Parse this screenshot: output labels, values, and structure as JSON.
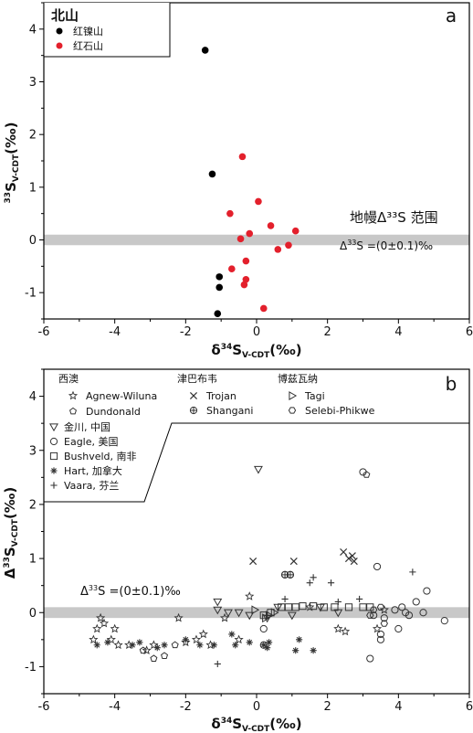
{
  "chart_data": [
    {
      "panel_label": "a",
      "type": "scatter",
      "xlim": [
        -6,
        6
      ],
      "ylim": [
        -1.5,
        4.5
      ],
      "x_ticks": [
        "-6",
        "-4",
        "-2",
        "0",
        "2",
        "4",
        "6"
      ],
      "y_ticks": [
        "-1",
        "0",
        "1",
        "2",
        "3",
        "4"
      ],
      "xlabel": {
        "main": "δ",
        "sup": "34",
        "mid": "S",
        "sub": "V-CDT",
        "unit": "(‰)"
      },
      "ylabel": {
        "sup": "33",
        "mid": "S",
        "sub": "V-CDT",
        "unit": "(‰)"
      },
      "legend": {
        "title": "北山",
        "location": "top-left"
      },
      "band": {
        "y": [
          -0.1,
          0.1
        ],
        "color": "#c8c8c8"
      },
      "band_label": "地幔Δ³³S 范围",
      "band_eq": {
        "pre": "Δ",
        "sup": "33",
        "post": "S =(0±0.1)‰"
      },
      "series": [
        {
          "name": "红镍山",
          "color": "#000000",
          "marker": "circle",
          "points": [
            [
              -1.45,
              3.6
            ],
            [
              -1.25,
              1.25
            ],
            [
              -1.05,
              -0.7
            ],
            [
              -1.05,
              -0.9
            ],
            [
              -1.1,
              -1.4
            ]
          ]
        },
        {
          "name": "红石山",
          "color": "#e3202c",
          "marker": "circle",
          "points": [
            [
              -0.4,
              1.58
            ],
            [
              0.05,
              0.73
            ],
            [
              -0.75,
              0.5
            ],
            [
              0.4,
              0.27
            ],
            [
              -0.2,
              0.12
            ],
            [
              -0.45,
              0.02
            ],
            [
              1.1,
              0.17
            ],
            [
              0.9,
              -0.1
            ],
            [
              0.6,
              -0.18
            ],
            [
              -0.3,
              -0.4
            ],
            [
              -0.7,
              -0.55
            ],
            [
              -0.3,
              -0.75
            ],
            [
              -0.35,
              -0.85
            ],
            [
              0.2,
              -1.3
            ]
          ]
        }
      ]
    },
    {
      "panel_label": "b",
      "type": "scatter",
      "xlim": [
        -6,
        6
      ],
      "ylim": [
        -1.5,
        4.5
      ],
      "x_ticks": [
        "-6",
        "-4",
        "-2",
        "0",
        "2",
        "4",
        "6"
      ],
      "y_ticks": [
        "-1",
        "0",
        "1",
        "2",
        "3",
        "4"
      ],
      "xlabel": {
        "main": "δ",
        "sup": "34",
        "mid": "S",
        "sub": "V-CDT",
        "unit": "(‰)"
      },
      "ylabel": {
        "main": "Δ",
        "sup": "33",
        "mid": "S",
        "sub": "V-CDT",
        "unit": "(‰)"
      },
      "band": {
        "y": [
          -0.1,
          0.1
        ],
        "color": "#c8c8c8"
      },
      "band_eq": {
        "pre": "Δ",
        "sup": "33",
        "post": "S =(0±0.1)‰"
      },
      "legend_groups": [
        "西澳",
        "津巴布韦",
        "博兹瓦纳"
      ],
      "series": [
        {
          "name": "Agnew-Wiluna",
          "marker": "star",
          "points": [
            [
              -4.6,
              -0.5
            ],
            [
              -4.5,
              -0.3
            ],
            [
              -4.3,
              -0.2
            ],
            [
              -4.1,
              -0.5
            ],
            [
              -4.0,
              -0.3
            ],
            [
              -3.9,
              -0.6
            ],
            [
              -4.4,
              -0.1
            ],
            [
              -3.6,
              -0.6
            ],
            [
              -3.1,
              -0.7
            ],
            [
              -2.9,
              -0.6
            ],
            [
              -2.2,
              -0.1
            ],
            [
              -1.5,
              -0.4
            ],
            [
              -1.3,
              -0.6
            ],
            [
              -0.9,
              -0.1
            ],
            [
              -0.2,
              0.3
            ],
            [
              -0.5,
              -0.5
            ],
            [
              1.5,
              0.1
            ],
            [
              2.3,
              -0.3
            ],
            [
              2.5,
              -0.35
            ],
            [
              3.4,
              -0.3
            ],
            [
              3.6,
              0.05
            ],
            [
              -1.7,
              -0.5
            ],
            [
              -2.0,
              -0.55
            ]
          ]
        },
        {
          "name": "Dundonald",
          "marker": "pentagon",
          "points": [
            [
              -2.9,
              -0.85
            ],
            [
              -2.6,
              -0.8
            ],
            [
              -3.2,
              -0.7
            ],
            [
              -2.3,
              -0.6
            ],
            [
              3.1,
              2.55
            ]
          ]
        },
        {
          "name": "金川, 中国",
          "marker": "tri-down",
          "points": [
            [
              0.05,
              2.65
            ],
            [
              -1.1,
              0.2
            ],
            [
              -1.1,
              0.05
            ],
            [
              -0.8,
              0.0
            ],
            [
              -0.5,
              0.0
            ],
            [
              -0.2,
              -0.05
            ],
            [
              0.3,
              -0.1
            ],
            [
              0.6,
              0.1
            ],
            [
              1.0,
              -0.05
            ],
            [
              2.3,
              0.0
            ],
            [
              1.8,
              0.1
            ]
          ]
        },
        {
          "name": "Eagle, 美国",
          "marker": "circle-open",
          "points": [
            [
              0.8,
              0.7
            ],
            [
              0.95,
              0.7
            ],
            [
              3.4,
              0.85
            ],
            [
              3.0,
              2.6
            ],
            [
              3.2,
              -0.85
            ],
            [
              4.0,
              -0.3
            ],
            [
              3.3,
              -0.05
            ],
            [
              3.5,
              -0.4
            ],
            [
              4.8,
              0.4
            ],
            [
              4.5,
              0.2
            ],
            [
              5.3,
              -0.15
            ],
            [
              3.9,
              0.05
            ],
            [
              3.6,
              -0.1
            ],
            [
              4.2,
              0.0
            ],
            [
              3.5,
              -0.5
            ],
            [
              0.2,
              -0.3
            ],
            [
              0.2,
              -0.6
            ],
            [
              4.7,
              0.0
            ],
            [
              4.3,
              -0.05
            ],
            [
              4.1,
              0.1
            ]
          ]
        },
        {
          "name": "Bushveld, 南非",
          "marker": "square-open",
          "points": [
            [
              0.7,
              0.1
            ],
            [
              0.9,
              0.1
            ],
            [
              1.1,
              0.1
            ],
            [
              1.3,
              0.12
            ],
            [
              1.6,
              0.12
            ],
            [
              1.9,
              0.1
            ],
            [
              2.2,
              0.1
            ],
            [
              2.6,
              0.1
            ],
            [
              3.0,
              0.1
            ],
            [
              3.2,
              0.1
            ],
            [
              0.4,
              0.0
            ],
            [
              0.2,
              -0.05
            ]
          ]
        },
        {
          "name": "Hart, 加拿大",
          "marker": "asterisk",
          "points": [
            [
              -4.5,
              -0.6
            ],
            [
              -4.2,
              -0.55
            ],
            [
              -3.5,
              -0.6
            ],
            [
              -2.6,
              -0.6
            ],
            [
              -2.8,
              -0.65
            ],
            [
              -1.6,
              -0.6
            ],
            [
              -1.2,
              -0.6
            ],
            [
              -0.7,
              -0.4
            ],
            [
              -0.6,
              -0.6
            ],
            [
              0.2,
              -0.6
            ],
            [
              0.3,
              -0.65
            ],
            [
              0.35,
              -0.55
            ],
            [
              1.1,
              -0.7
            ],
            [
              1.6,
              -0.7
            ],
            [
              1.2,
              -0.5
            ],
            [
              -0.2,
              -0.55
            ],
            [
              -2.0,
              -0.5
            ],
            [
              -3.3,
              -0.55
            ]
          ]
        },
        {
          "name": "Vaara, 芬兰",
          "marker": "plus",
          "points": [
            [
              -1.1,
              -0.95
            ],
            [
              1.5,
              0.55
            ],
            [
              1.6,
              0.65
            ],
            [
              2.1,
              0.55
            ],
            [
              2.3,
              0.2
            ],
            [
              2.9,
              0.25
            ],
            [
              4.4,
              0.75
            ],
            [
              0.8,
              0.25
            ]
          ]
        },
        {
          "name": "Trojan",
          "marker": "x",
          "points": [
            [
              -0.1,
              0.95
            ],
            [
              1.05,
              0.95
            ],
            [
              2.45,
              1.12
            ],
            [
              2.6,
              1.0
            ],
            [
              2.7,
              1.05
            ],
            [
              2.75,
              0.95
            ]
          ]
        },
        {
          "name": "Shangani",
          "marker": "circle-plus",
          "points": [
            [
              0.8,
              0.7
            ],
            [
              0.95,
              0.7
            ]
          ]
        },
        {
          "name": "Tagi",
          "marker": "tri-right",
          "points": [
            [
              0.35,
              -0.05
            ],
            [
              0.5,
              0.0
            ],
            [
              -0.05,
              0.05
            ],
            [
              0.25,
              -0.1
            ]
          ]
        },
        {
          "name": "Selebi-Phikwe",
          "marker": "hexagon",
          "points": [
            [
              3.3,
              0.05
            ],
            [
              3.5,
              0.1
            ],
            [
              3.2,
              -0.05
            ],
            [
              3.6,
              -0.2
            ]
          ]
        }
      ]
    }
  ]
}
